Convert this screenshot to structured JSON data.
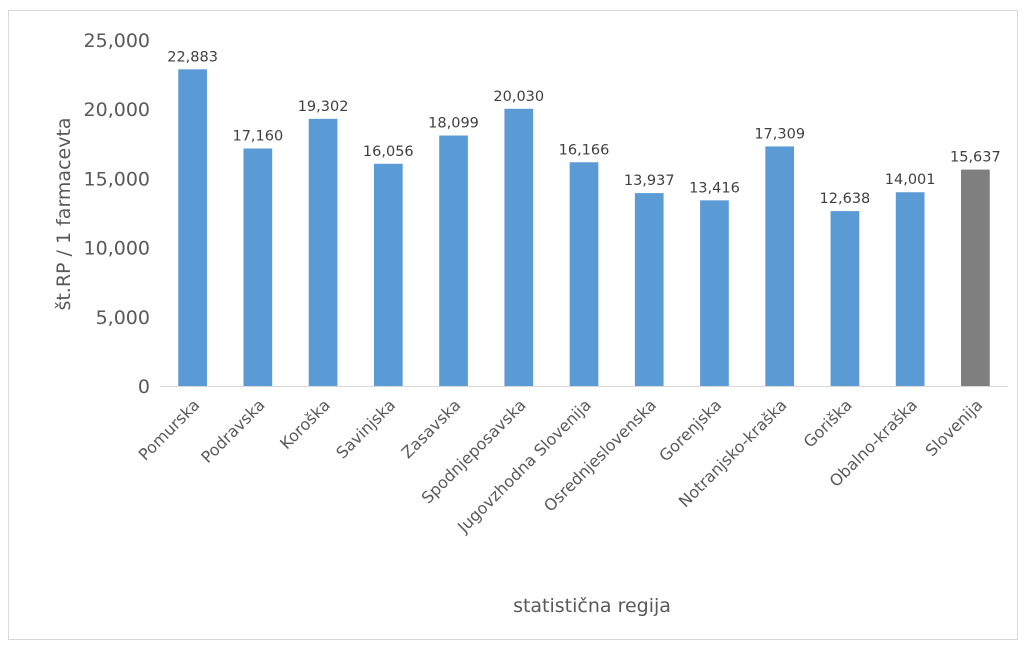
{
  "chart_data": {
    "type": "bar",
    "xlabel": "statistična regija",
    "ylabel": "št.RP / 1 farmacevta",
    "ylim": [
      0,
      25000
    ],
    "yticks": [
      0,
      5000,
      10000,
      15000,
      20000,
      25000
    ],
    "ytick_labels": [
      "0",
      "5,000",
      "10,000",
      "15,000",
      "20,000",
      "25,000"
    ],
    "grid": false,
    "categories": [
      "Pomurska",
      "Podravska",
      "Koroška",
      "Savinjska",
      "Zasavska",
      "Spodnjeposavska",
      "Jugovzhodna Slovenija",
      "Osrednjeslovenska",
      "Gorenjska",
      "Notranjsko-kraška",
      "Goriška",
      "Obalno-kraška",
      "Slovenija"
    ],
    "values": [
      22883,
      17160,
      19302,
      16056,
      18099,
      20030,
      16166,
      13937,
      13416,
      17309,
      12638,
      14001,
      15637
    ],
    "value_labels": [
      "22,883",
      "17,160",
      "19,302",
      "16,056",
      "18,099",
      "20,030",
      "16,166",
      "13,937",
      "13,416",
      "17,309",
      "12,638",
      "14,001",
      "15,637"
    ],
    "bar_colors": [
      "#5b9bd5",
      "#5b9bd5",
      "#5b9bd5",
      "#5b9bd5",
      "#5b9bd5",
      "#5b9bd5",
      "#5b9bd5",
      "#5b9bd5",
      "#5b9bd5",
      "#5b9bd5",
      "#5b9bd5",
      "#5b9bd5",
      "#7f7f7f"
    ],
    "axis_color": "#d9d9d9"
  }
}
